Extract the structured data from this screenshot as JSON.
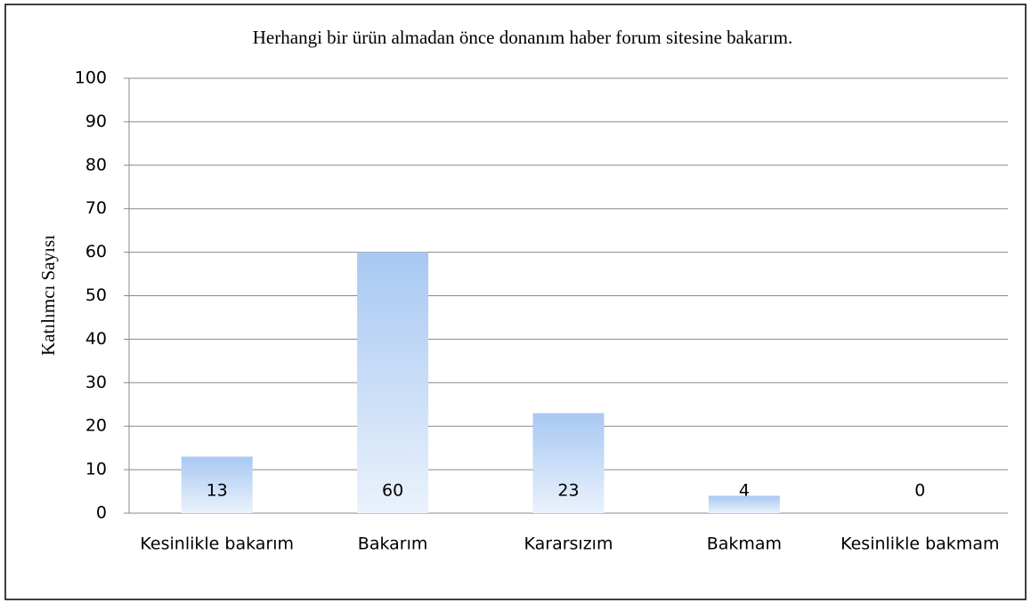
{
  "chart_data": {
    "type": "bar",
    "title": "Herhangi bir ürün almadan önce donanım haber forum sitesine bakarım.",
    "y_label": "Katılımcı Sayısı",
    "categories": [
      "Kesinlikle bakarım",
      "Bakarım",
      "Kararsızım",
      "Bakmam",
      "Kesinlikle bakmam"
    ],
    "values": [
      13,
      60,
      23,
      4,
      0
    ],
    "color": "#a8c8f2",
    "ylim": [
      0,
      100
    ],
    "yticks": [
      0,
      10,
      20,
      30,
      40,
      50,
      60,
      70,
      80,
      90,
      100
    ],
    "grid": true
  }
}
